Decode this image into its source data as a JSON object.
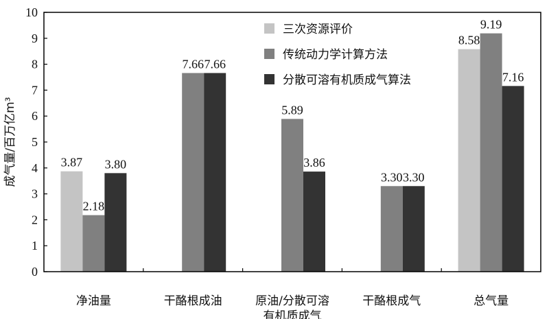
{
  "chart_data": {
    "type": "bar",
    "categories": [
      [
        "净油量"
      ],
      [
        "干酪根成油"
      ],
      [
        "原油/分散可溶",
        "有机质成气"
      ],
      [
        "干酪根成气"
      ],
      [
        "总气量"
      ]
    ],
    "series": [
      {
        "name": "三次资源评价",
        "color": "#c4c4c4",
        "values": [
          3.87,
          null,
          null,
          null,
          8.58
        ]
      },
      {
        "name": "传统动力学计算方法",
        "color": "#808080",
        "values": [
          2.18,
          7.66,
          5.89,
          3.3,
          9.19
        ]
      },
      {
        "name": "分散可溶有机质成气算法",
        "color": "#333333",
        "values": [
          3.8,
          7.66,
          3.86,
          3.3,
          7.16
        ]
      }
    ],
    "ylabel": "成气量/百万亿m³",
    "ylim": [
      0,
      10
    ],
    "yticks": [
      0,
      1,
      2,
      3,
      4,
      5,
      6,
      7,
      8,
      9,
      10
    ],
    "legend_position": "top-right",
    "grid": false
  }
}
